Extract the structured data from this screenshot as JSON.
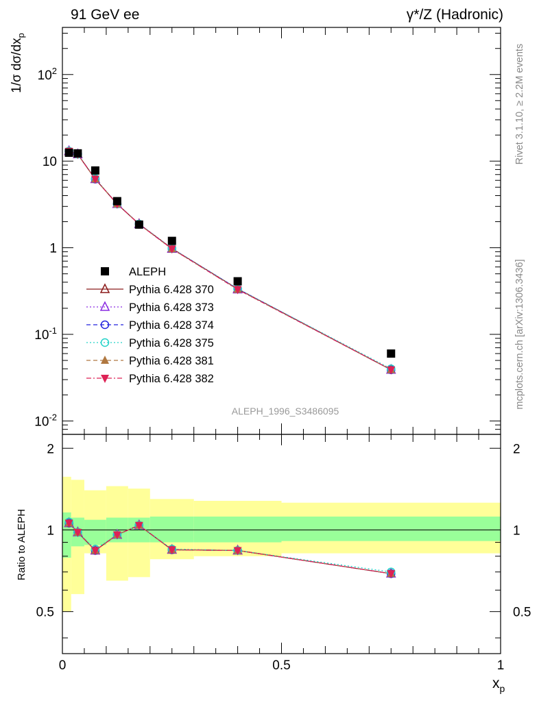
{
  "header": {
    "left": "91 GeV ee",
    "right_main": "γ*/Z (Hadronic)"
  },
  "side_labels": {
    "rivet": "Rivet 3.1.10, ≥ 2.2M events",
    "mcplots": "mcplots.cern.ch [arXiv:1306.3436]"
  },
  "analysis_label": "ALEPH_1996_S3486095",
  "colors": {
    "aleph": "#000000",
    "p370": "#8b1a1a",
    "p373": "#8a2be2",
    "p374": "#2222dd",
    "p375": "#22d2c8",
    "p381": "#b07840",
    "p382": "#dd2255",
    "band_inner": "#99ff99",
    "band_outer": "#ffff99"
  },
  "chart_data": [
    {
      "type": "scatter",
      "yscale": "log",
      "ylabel": "1/σ dσ/dx_p",
      "xlim": [
        0,
        1
      ],
      "ylim": [
        0.007,
        350
      ],
      "ytick_labels": [
        "10^-2",
        "10^-1",
        "1",
        "10",
        "10^2"
      ],
      "legend_position": "lower-left",
      "x": [
        0.015,
        0.035,
        0.075,
        0.125,
        0.175,
        0.25,
        0.4,
        0.75
      ],
      "series": [
        {
          "name": "ALEPH",
          "marker": "square",
          "values": [
            12.5,
            12.3,
            7.8,
            3.45,
            1.85,
            1.2,
            0.41,
            0.06
          ]
        },
        {
          "name": "Pythia 6.428 370",
          "marker": "triangle-open",
          "line": "solid",
          "values": [
            13.0,
            12.0,
            6.2,
            3.2,
            1.88,
            0.98,
            0.335,
            0.039
          ]
        },
        {
          "name": "Pythia 6.428 373",
          "marker": "triangle-open",
          "line": "dotted",
          "values": [
            13.1,
            12.0,
            6.2,
            3.2,
            1.87,
            0.97,
            0.33,
            0.039
          ]
        },
        {
          "name": "Pythia 6.428 374",
          "marker": "circle-open",
          "line": "dashed",
          "values": [
            13.0,
            12.1,
            6.2,
            3.2,
            1.88,
            0.98,
            0.335,
            0.039
          ]
        },
        {
          "name": "Pythia 6.428 375",
          "marker": "circle-open",
          "line": "dotted",
          "values": [
            13.1,
            12.0,
            6.3,
            3.2,
            1.88,
            0.98,
            0.335,
            0.04
          ]
        },
        {
          "name": "Pythia 6.428 381",
          "marker": "triangle-filled",
          "line": "dashed",
          "values": [
            13.0,
            12.0,
            6.2,
            3.2,
            1.87,
            0.97,
            0.33,
            0.039
          ]
        },
        {
          "name": "Pythia 6.428 382",
          "marker": "triangle-down-filled",
          "line": "dashdot",
          "values": [
            13.0,
            12.0,
            6.2,
            3.2,
            1.87,
            0.97,
            0.33,
            0.039
          ]
        }
      ]
    },
    {
      "type": "line",
      "ylabel": "Ratio to ALEPH",
      "xlabel": "x_p",
      "xlim": [
        0,
        1
      ],
      "ylim": [
        0.35,
        2.25
      ],
      "ytick_labels": [
        "0.5",
        "1",
        "2"
      ],
      "xtick_labels": [
        "0",
        "0.5",
        "1"
      ],
      "bins": [
        [
          0,
          0.02
        ],
        [
          0.02,
          0.05
        ],
        [
          0.05,
          0.1
        ],
        [
          0.1,
          0.15
        ],
        [
          0.15,
          0.2
        ],
        [
          0.2,
          0.3
        ],
        [
          0.3,
          0.5
        ],
        [
          0.5,
          1.0
        ]
      ],
      "band_inner": [
        [
          0.79,
          1.16
        ],
        [
          0.87,
          1.11
        ],
        [
          0.88,
          1.09
        ],
        [
          0.9,
          1.11
        ],
        [
          0.9,
          1.11
        ],
        [
          0.9,
          1.12
        ],
        [
          0.9,
          1.12
        ],
        [
          0.91,
          1.12
        ]
      ],
      "band_outer": [
        [
          0.5,
          1.57
        ],
        [
          0.58,
          1.53
        ],
        [
          0.82,
          1.4
        ],
        [
          0.65,
          1.45
        ],
        [
          0.67,
          1.42
        ],
        [
          0.78,
          1.3
        ],
        [
          0.8,
          1.28
        ],
        [
          0.82,
          1.26
        ]
      ],
      "x": [
        0.015,
        0.035,
        0.075,
        0.125,
        0.175,
        0.25,
        0.4,
        0.75
      ],
      "series": [
        {
          "name": "Pythia 6.428 370",
          "values": [
            1.06,
            0.98,
            0.84,
            0.96,
            1.04,
            0.845,
            0.84,
            0.69
          ]
        },
        {
          "name": "Pythia 6.428 373",
          "values": [
            1.06,
            0.98,
            0.84,
            0.96,
            1.04,
            0.845,
            0.84,
            0.69
          ]
        },
        {
          "name": "Pythia 6.428 374",
          "values": [
            1.06,
            0.98,
            0.84,
            0.96,
            1.04,
            0.845,
            0.84,
            0.69
          ]
        },
        {
          "name": "Pythia 6.428 375",
          "values": [
            1.07,
            0.98,
            0.85,
            0.96,
            1.04,
            0.85,
            0.84,
            0.7
          ]
        },
        {
          "name": "Pythia 6.428 381",
          "values": [
            1.06,
            0.98,
            0.84,
            0.96,
            1.04,
            0.845,
            0.84,
            0.69
          ]
        },
        {
          "name": "Pythia 6.428 382",
          "values": [
            1.06,
            0.98,
            0.84,
            0.96,
            1.04,
            0.845,
            0.84,
            0.69
          ]
        }
      ]
    }
  ]
}
